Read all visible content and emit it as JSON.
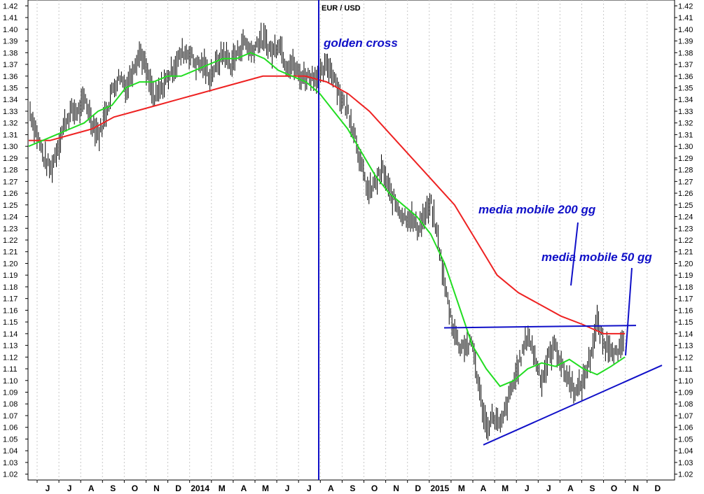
{
  "chart_data": {
    "type": "line",
    "title": "EUR / USD",
    "y_ticks": [
      "1.02",
      "1.03",
      "1.04",
      "1.05",
      "1.06",
      "1.07",
      "1.08",
      "1.09",
      "1.10",
      "1.11",
      "1.12",
      "1.13",
      "1.14",
      "1.15",
      "1.16",
      "1.17",
      "1.18",
      "1.19",
      "1.20",
      "1.21",
      "1.22",
      "1.23",
      "1.24",
      "1.25",
      "1.26",
      "1.27",
      "1.28",
      "1.29",
      "1.30",
      "1.31",
      "1.32",
      "1.33",
      "1.34",
      "1.35",
      "1.36",
      "1.37",
      "1.38",
      "1.39",
      "1.40",
      "1.41",
      "1.42"
    ],
    "ylim": [
      1.015,
      1.425
    ],
    "x_labels": [
      "J",
      "J",
      "A",
      "S",
      "O",
      "N",
      "D",
      "2014",
      "M",
      "A",
      "M",
      "J",
      "J",
      "A",
      "S",
      "O",
      "N",
      "D",
      "2015",
      "M",
      "A",
      "M",
      "J",
      "J",
      "A",
      "S",
      "O",
      "N",
      "D"
    ],
    "grid": true,
    "series": [
      {
        "name": "",
        "style": "price-bars",
        "color": "#000000",
        "values": [
          1.33,
          1.31,
          1.29,
          1.28,
          1.3,
          1.32,
          1.33,
          1.33,
          1.34,
          1.32,
          1.31,
          1.33,
          1.35,
          1.36,
          1.35,
          1.37,
          1.38,
          1.36,
          1.34,
          1.35,
          1.36,
          1.37,
          1.38,
          1.38,
          1.37,
          1.37,
          1.36,
          1.37,
          1.38,
          1.37,
          1.38,
          1.39,
          1.38,
          1.39,
          1.39,
          1.38,
          1.39,
          1.37,
          1.37,
          1.36,
          1.36,
          1.36,
          1.36,
          1.37,
          1.36,
          1.34,
          1.33,
          1.31,
          1.28,
          1.26,
          1.27,
          1.28,
          1.26,
          1.25,
          1.24,
          1.24,
          1.23,
          1.24,
          1.25,
          1.22,
          1.18,
          1.15,
          1.13,
          1.13,
          1.13,
          1.09,
          1.06,
          1.07,
          1.06,
          1.08,
          1.1,
          1.12,
          1.14,
          1.12,
          1.1,
          1.12,
          1.13,
          1.11,
          1.1,
          1.09,
          1.1,
          1.12,
          1.15,
          1.13,
          1.13,
          1.12,
          1.14
        ]
      },
      {
        "name": "media mobile 50 gg",
        "color": "#22dd22",
        "values": [
          1.3,
          1.305,
          1.31,
          1.315,
          1.32,
          1.33,
          1.335,
          1.35,
          1.355,
          1.355,
          1.36,
          1.36,
          1.365,
          1.37,
          1.375,
          1.375,
          1.38,
          1.375,
          1.365,
          1.36,
          1.355,
          1.345,
          1.33,
          1.315,
          1.295,
          1.275,
          1.26,
          1.25,
          1.24,
          1.225,
          1.2,
          1.165,
          1.13,
          1.11,
          1.095,
          1.1,
          1.11,
          1.115,
          1.112,
          1.118,
          1.11,
          1.105,
          1.112,
          1.12
        ]
      },
      {
        "name": "media mobile 200 gg",
        "color": "#ee2222",
        "values": [
          1.305,
          1.305,
          1.31,
          1.315,
          1.325,
          1.33,
          1.335,
          1.34,
          1.345,
          1.35,
          1.355,
          1.36,
          1.36,
          1.36,
          1.355,
          1.345,
          1.33,
          1.31,
          1.29,
          1.27,
          1.25,
          1.22,
          1.19,
          1.175,
          1.165,
          1.155,
          1.148,
          1.14,
          1.14
        ]
      }
    ],
    "annotations": {
      "golden_cross": "golden cross",
      "ma200": "media mobile 200 gg",
      "ma50": "media mobile 50 gg"
    },
    "colors": {
      "annotation": "#1010c8",
      "grid": "#c8c8c8",
      "ma50": "#22dd22",
      "ma200": "#ee2222",
      "price": "#000000"
    }
  }
}
